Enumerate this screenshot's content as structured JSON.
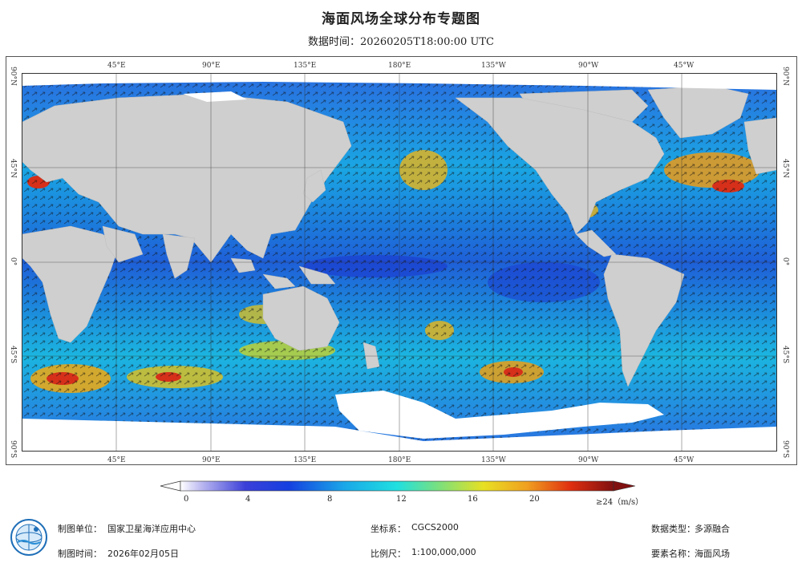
{
  "title": "海面风场全球分布专题图",
  "data_time": "数据时间：20260205T18:00:00 UTC",
  "lon_labels_top": [
    "45°E",
    "90°E",
    "135°E",
    "180°E",
    "135°W",
    "90°W",
    "45°W"
  ],
  "lon_labels_bottom": [
    "45°E",
    "90°E",
    "135°E",
    "180°E",
    "135°W",
    "90°W",
    "45°W"
  ],
  "lat_labels": [
    "90°N",
    "45°N",
    "0°",
    "45°S",
    "90°S"
  ],
  "colorbar": {
    "labels": [
      "0",
      "4",
      "8",
      "12",
      "16",
      "20",
      "≥24（m/s）"
    ],
    "min": 0,
    "max": 24,
    "unit": "m/s"
  },
  "footer": {
    "maker_label": "制图单位：",
    "maker_value": "国家卫星海洋应用中心",
    "date_label": "制图时间：",
    "date_value": "2026年02月05日",
    "crs_label": "坐标系：",
    "crs_value": "CGCS2000",
    "scale_label": "比例尺：",
    "scale_value": "1:100,000,000",
    "type_label": "数据类型：",
    "type_value": "多源融合",
    "element_label": "要素名称：",
    "element_value": "海面风场"
  },
  "colors": {
    "land": "#cfcfcf",
    "ice": "#ffffff",
    "ocean_low": "#1f3fd4",
    "ocean_mid": "#19c4e6",
    "ocean_high": "#e8d21a",
    "ocean_peak": "#d6301a"
  },
  "logo_icon": "globe-logo-icon"
}
